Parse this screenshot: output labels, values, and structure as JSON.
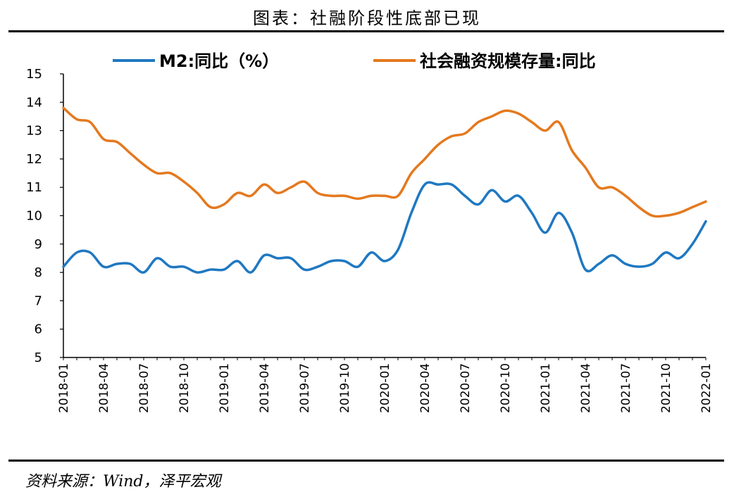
{
  "title": "图表：社融阶段性底部已现",
  "source": "资料来源：Wind，泽平宏观",
  "chart_data": {
    "type": "line",
    "x_tick_labels": [
      "2018-01",
      "2018-04",
      "2018-07",
      "2018-10",
      "2019-01",
      "2019-04",
      "2019-07",
      "2019-10",
      "2020-01",
      "2020-04",
      "2020-07",
      "2020-10",
      "2021-01",
      "2021-04",
      "2021-07",
      "2021-10",
      "2022-01"
    ],
    "ylim": [
      5,
      15
    ],
    "y_ticks": [
      5,
      6,
      7,
      8,
      9,
      10,
      11,
      12,
      13,
      14,
      15
    ],
    "legend_position": "top",
    "series": [
      {
        "name": "M2:同比（%）",
        "color": "#1f78c1",
        "x": [
          "2018-01",
          "2018-02",
          "2018-03",
          "2018-04",
          "2018-05",
          "2018-06",
          "2018-07",
          "2018-08",
          "2018-09",
          "2018-10",
          "2018-11",
          "2018-12",
          "2019-01",
          "2019-02",
          "2019-03",
          "2019-04",
          "2019-05",
          "2019-06",
          "2019-07",
          "2019-08",
          "2019-09",
          "2019-10",
          "2019-11",
          "2019-12",
          "2020-01",
          "2020-02",
          "2020-03",
          "2020-04",
          "2020-05",
          "2020-06",
          "2020-07",
          "2020-08",
          "2020-09",
          "2020-10",
          "2020-11",
          "2020-12",
          "2021-01",
          "2021-02",
          "2021-03",
          "2021-04",
          "2021-05",
          "2021-06",
          "2021-07",
          "2021-08",
          "2021-09",
          "2021-10",
          "2021-11",
          "2021-12",
          "2022-01"
        ],
        "values": [
          8.2,
          8.7,
          8.7,
          8.2,
          8.3,
          8.3,
          8.0,
          8.5,
          8.2,
          8.2,
          8.0,
          8.1,
          8.1,
          8.4,
          8.0,
          8.6,
          8.5,
          8.5,
          8.1,
          8.2,
          8.4,
          8.4,
          8.2,
          8.7,
          8.4,
          8.8,
          10.1,
          11.1,
          11.1,
          11.1,
          10.7,
          10.4,
          10.9,
          10.5,
          10.7,
          10.1,
          9.4,
          10.1,
          9.4,
          8.1,
          8.3,
          8.6,
          8.3,
          8.2,
          8.3,
          8.7,
          8.5,
          9.0,
          9.8
        ]
      },
      {
        "name": "社会融资规模存量:同比",
        "color": "#e4791e",
        "x": [
          "2018-01",
          "2018-02",
          "2018-03",
          "2018-04",
          "2018-05",
          "2018-06",
          "2018-07",
          "2018-08",
          "2018-09",
          "2018-10",
          "2018-11",
          "2018-12",
          "2019-01",
          "2019-02",
          "2019-03",
          "2019-04",
          "2019-05",
          "2019-06",
          "2019-07",
          "2019-08",
          "2019-09",
          "2019-10",
          "2019-11",
          "2019-12",
          "2020-01",
          "2020-02",
          "2020-03",
          "2020-04",
          "2020-05",
          "2020-06",
          "2020-07",
          "2020-08",
          "2020-09",
          "2020-10",
          "2020-11",
          "2020-12",
          "2021-01",
          "2021-02",
          "2021-03",
          "2021-04",
          "2021-05",
          "2021-06",
          "2021-07",
          "2021-08",
          "2021-09",
          "2021-10",
          "2021-11",
          "2021-12",
          "2022-01"
        ],
        "values": [
          13.8,
          13.4,
          13.3,
          12.7,
          12.6,
          12.2,
          11.8,
          11.5,
          11.5,
          11.2,
          10.8,
          10.3,
          10.4,
          10.8,
          10.7,
          11.1,
          10.8,
          11.0,
          11.2,
          10.8,
          10.7,
          10.7,
          10.6,
          10.7,
          10.7,
          10.7,
          11.5,
          12.0,
          12.5,
          12.8,
          12.9,
          13.3,
          13.5,
          13.7,
          13.6,
          13.3,
          13.0,
          13.3,
          12.3,
          11.7,
          11.0,
          11.0,
          10.7,
          10.3,
          10.0,
          10.0,
          10.1,
          10.3,
          10.5
        ]
      }
    ]
  }
}
